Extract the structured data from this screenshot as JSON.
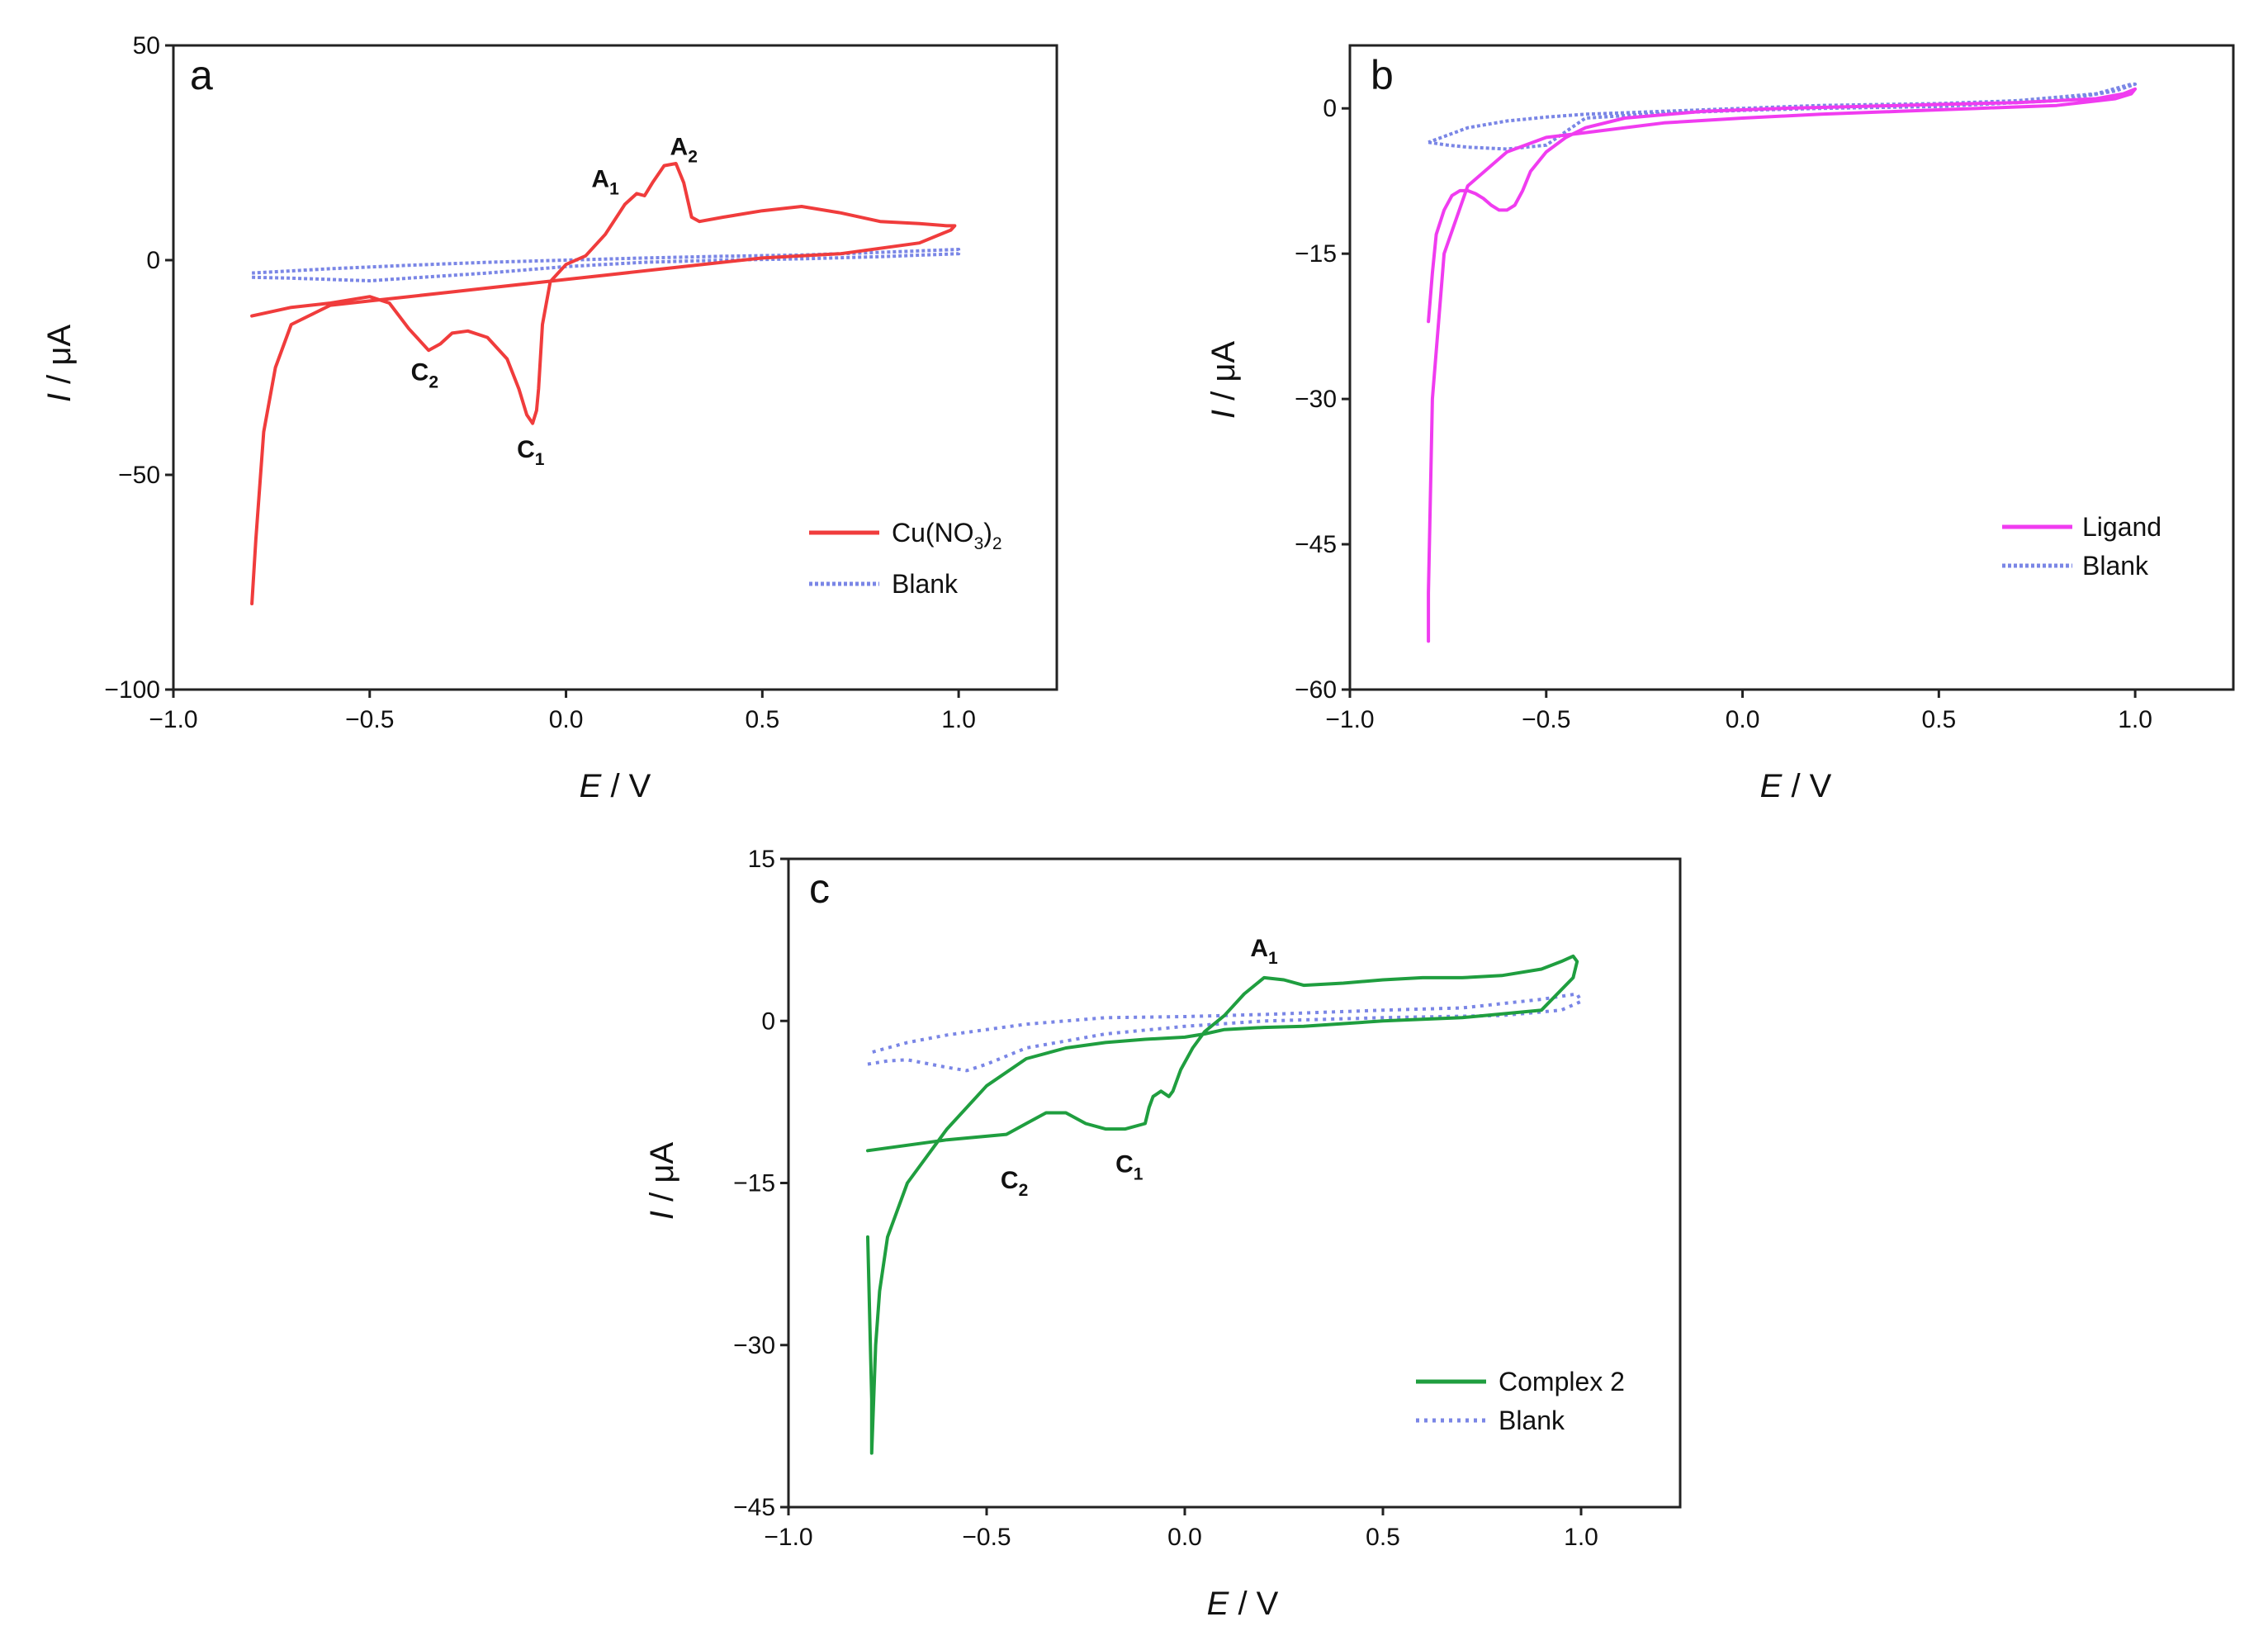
{
  "chart_data": [
    {
      "type": "line",
      "panel": "a",
      "xlabel": "E",
      "xlabel_unit": " / V",
      "ylabel": "I",
      "ylabel_unit": " / μA",
      "xlim": [
        -1.0,
        1.25
      ],
      "ylim": [
        -100,
        50
      ],
      "xticks": [
        -1.0,
        -0.5,
        0.0,
        0.5,
        1.0
      ],
      "xtick_labels": [
        "−1.0",
        "−0.5",
        "0.0",
        "0.5",
        "1.0"
      ],
      "yticks": [
        50,
        0,
        -50,
        -100
      ],
      "ytick_labels": [
        "50",
        "0",
        "−50",
        "−100"
      ],
      "legend_position": "bottom-right",
      "series": [
        {
          "name": "Cu(NO3)2",
          "legend": {
            "main": "Cu(NO",
            "sub1": "3",
            "mid": ")",
            "sub2": "2"
          },
          "color": "#f03c3c",
          "style": "solid",
          "x": [
            -0.8,
            -0.7,
            -0.6,
            -0.5,
            -0.45,
            -0.4,
            -0.37,
            -0.35,
            -0.32,
            -0.29,
            -0.25,
            -0.2,
            -0.15,
            -0.12,
            -0.1,
            -0.085,
            -0.075,
            -0.07,
            -0.06,
            -0.04,
            0.0,
            0.05,
            0.1,
            0.15,
            0.18,
            0.2,
            0.22,
            0.25,
            0.28,
            0.3,
            0.32,
            0.34,
            0.4,
            0.5,
            0.6,
            0.7,
            0.8,
            0.9,
            0.97,
            0.99,
            0.98,
            0.9,
            0.7,
            0.5,
            0.3,
            0.1,
            0.0,
            -0.1,
            -0.2,
            -0.3,
            -0.4,
            -0.5,
            -0.6,
            -0.7,
            -0.74,
            -0.77,
            -0.79,
            -0.8,
            -0.8
          ],
          "y": [
            -13,
            -11,
            -10,
            -8.5,
            -10,
            -16,
            -19,
            -21,
            -19.5,
            -17,
            -16.5,
            -18,
            -23,
            -30,
            -36,
            -38,
            -35,
            -30,
            -15,
            -5,
            -1,
            1,
            6,
            13,
            15.5,
            15,
            18,
            22,
            22.5,
            18,
            10,
            9,
            10,
            11.5,
            12.5,
            11,
            9,
            8.5,
            8,
            8,
            7,
            4,
            1.5,
            0.5,
            -1.5,
            -3.5,
            -4.5,
            -5.5,
            -6.5,
            -7.5,
            -8.5,
            -9.5,
            -10.5,
            -15,
            -25,
            -40,
            -65,
            -80,
            -80
          ]
        },
        {
          "name": "Blank",
          "legend": {
            "main": "Blank"
          },
          "color": "#7a86e6",
          "style": "dotted",
          "x": [
            -0.8,
            -0.7,
            -0.6,
            -0.5,
            -0.4,
            -0.2,
            0.0,
            0.2,
            0.4,
            0.6,
            0.8,
            1.0,
            1.0,
            0.8,
            0.6,
            0.4,
            0.2,
            0.0,
            -0.2,
            -0.4,
            -0.6,
            -0.7,
            -0.8
          ],
          "y": [
            -4,
            -4.2,
            -4.5,
            -4.8,
            -4.2,
            -3,
            -1.5,
            -0.5,
            0,
            0.3,
            0.8,
            1.5,
            2.5,
            1.8,
            1.2,
            0.9,
            0.5,
            0,
            -0.5,
            -1.2,
            -2,
            -2.5,
            -3
          ]
        }
      ],
      "annotations": [
        {
          "label": "C",
          "sub": "2",
          "x": -0.36,
          "y": -28
        },
        {
          "label": "C",
          "sub": "1",
          "x": -0.09,
          "y": -46
        },
        {
          "label": "A",
          "sub": "1",
          "x": 0.1,
          "y": 17
        },
        {
          "label": "A",
          "sub": "2",
          "x": 0.3,
          "y": 24.5
        }
      ]
    },
    {
      "type": "line",
      "panel": "b",
      "xlabel": "E",
      "xlabel_unit": " / V",
      "ylabel": "I",
      "ylabel_unit": " / μA",
      "xlim": [
        -1.0,
        1.25
      ],
      "ylim": [
        -60,
        6.5
      ],
      "xticks": [
        -1.0,
        -0.5,
        0.0,
        0.5,
        1.0
      ],
      "xtick_labels": [
        "−1.0",
        "−0.5",
        "0.0",
        "0.5",
        "1.0"
      ],
      "yticks": [
        0,
        -15,
        -30,
        -45,
        -60
      ],
      "ytick_labels": [
        "0",
        "−15",
        "−30",
        "−45",
        "−60"
      ],
      "legend_position": "bottom-right",
      "series": [
        {
          "name": "Ligand",
          "legend": {
            "main": "Ligand"
          },
          "color": "#f03cf0",
          "style": "solid",
          "x": [
            -0.8,
            -0.79,
            -0.78,
            -0.76,
            -0.74,
            -0.72,
            -0.7,
            -0.68,
            -0.66,
            -0.64,
            -0.62,
            -0.6,
            -0.58,
            -0.56,
            -0.54,
            -0.5,
            -0.45,
            -0.4,
            -0.3,
            -0.1,
            0.1,
            0.3,
            0.5,
            0.7,
            0.9,
            0.97,
            1.0,
            0.99,
            0.95,
            0.8,
            0.6,
            0.4,
            0.2,
            0.0,
            -0.2,
            -0.4,
            -0.5,
            -0.6,
            -0.7,
            -0.76,
            -0.79,
            -0.8,
            -0.8
          ],
          "y": [
            -22,
            -17,
            -13,
            -10.5,
            -9,
            -8.5,
            -8.5,
            -8.8,
            -9.3,
            -10,
            -10.5,
            -10.5,
            -10,
            -8.5,
            -6.5,
            -4.5,
            -3,
            -2,
            -1,
            -0.3,
            0,
            0.2,
            0.4,
            0.6,
            1,
            1.5,
            2,
            1.5,
            1,
            0.3,
            0,
            -0.3,
            -0.6,
            -1,
            -1.5,
            -2.5,
            -3,
            -4.5,
            -8,
            -15,
            -30,
            -50,
            -55
          ]
        },
        {
          "name": "Blank",
          "legend": {
            "main": "Blank"
          },
          "color": "#7a86e6",
          "style": "dotted",
          "x": [
            -0.8,
            -0.75,
            -0.7,
            -0.6,
            -0.5,
            -0.4,
            -0.2,
            0.0,
            0.2,
            0.5,
            0.8,
            0.95,
            1.0,
            0.99,
            0.9,
            0.7,
            0.5,
            0.2,
            0.0,
            -0.2,
            -0.4,
            -0.5,
            -0.6,
            -0.7,
            -0.8
          ],
          "y": [
            -3.5,
            -3.8,
            -4,
            -4.2,
            -3.8,
            -1,
            -0.5,
            -0.2,
            0,
            0.2,
            0.8,
            1.8,
            2.5,
            2.5,
            1.5,
            0.8,
            0.5,
            0.3,
            0,
            -0.3,
            -0.6,
            -0.9,
            -1.3,
            -2,
            -3.5
          ]
        }
      ],
      "annotations": []
    },
    {
      "type": "line",
      "panel": "c",
      "xlabel": "E",
      "xlabel_unit": " / V",
      "ylabel": "I",
      "ylabel_unit": " / μA",
      "xlim": [
        -1.0,
        1.25
      ],
      "ylim": [
        -45,
        15
      ],
      "xticks": [
        -1.0,
        -0.5,
        0.0,
        0.5,
        1.0
      ],
      "xtick_labels": [
        "−1.0",
        "−0.5",
        "0.0",
        "0.5",
        "1.0"
      ],
      "yticks": [
        15,
        0,
        -15,
        -30,
        -45
      ],
      "ytick_labels": [
        "15",
        "0",
        "−15",
        "−30",
        "−45"
      ],
      "legend_position": "bottom-right",
      "series": [
        {
          "name": "Complex 2",
          "legend": {
            "main": "Complex 2"
          },
          "color": "#1f9e3f",
          "style": "solid",
          "x": [
            -0.8,
            -0.6,
            -0.45,
            -0.4,
            -0.35,
            -0.3,
            -0.25,
            -0.2,
            -0.15,
            -0.1,
            -0.09,
            -0.08,
            -0.06,
            -0.04,
            -0.03,
            -0.01,
            0.02,
            0.05,
            0.1,
            0.15,
            0.2,
            0.25,
            0.3,
            0.4,
            0.5,
            0.6,
            0.7,
            0.8,
            0.9,
            0.95,
            0.98,
            0.99,
            0.98,
            0.9,
            0.7,
            0.5,
            0.3,
            0.2,
            0.1,
            0.05,
            0.0,
            -0.1,
            -0.2,
            -0.3,
            -0.4,
            -0.5,
            -0.6,
            -0.7,
            -0.75,
            -0.77,
            -0.78,
            -0.785,
            -0.79,
            -0.79,
            -0.8
          ],
          "y": [
            -12,
            -11,
            -10.5,
            -9.5,
            -8.5,
            -8.5,
            -9.5,
            -10,
            -10,
            -9.5,
            -8,
            -7,
            -6.5,
            -7,
            -6.5,
            -4.5,
            -2.5,
            -1,
            0.5,
            2.5,
            4,
            3.8,
            3.3,
            3.5,
            3.8,
            4,
            4,
            4.2,
            4.8,
            5.5,
            6,
            5.5,
            4,
            1,
            0.3,
            0,
            -0.5,
            -0.6,
            -0.8,
            -1.2,
            -1.5,
            -1.7,
            -2,
            -2.5,
            -3.5,
            -6,
            -10,
            -15,
            -20,
            -25,
            -30,
            -35,
            -40,
            -35,
            -20
          ]
        },
        {
          "name": "Blank",
          "legend": {
            "main": "Blank"
          },
          "color": "#7a86e6",
          "style": "dotted",
          "x": [
            -0.8,
            -0.75,
            -0.7,
            -0.6,
            -0.55,
            -0.5,
            -0.4,
            -0.2,
            0.0,
            0.2,
            0.5,
            0.8,
            0.95,
            1.0,
            0.99,
            0.9,
            0.7,
            0.5,
            0.2,
            0.0,
            -0.2,
            -0.4,
            -0.6,
            -0.7,
            -0.8
          ],
          "y": [
            -4,
            -3.7,
            -3.6,
            -4.3,
            -4.6,
            -4,
            -2.5,
            -1.2,
            -0.5,
            0,
            0.3,
            0.5,
            1,
            1.8,
            2.5,
            2,
            1.2,
            1,
            0.6,
            0.4,
            0.3,
            -0.3,
            -1.3,
            -2,
            -3
          ]
        }
      ],
      "annotations": [
        {
          "label": "C",
          "sub": "2",
          "x": -0.43,
          "y": -15.5
        },
        {
          "label": "C",
          "sub": "1",
          "x": -0.14,
          "y": -14
        },
        {
          "label": "A",
          "sub": "1",
          "x": 0.2,
          "y": 6
        }
      ]
    }
  ]
}
